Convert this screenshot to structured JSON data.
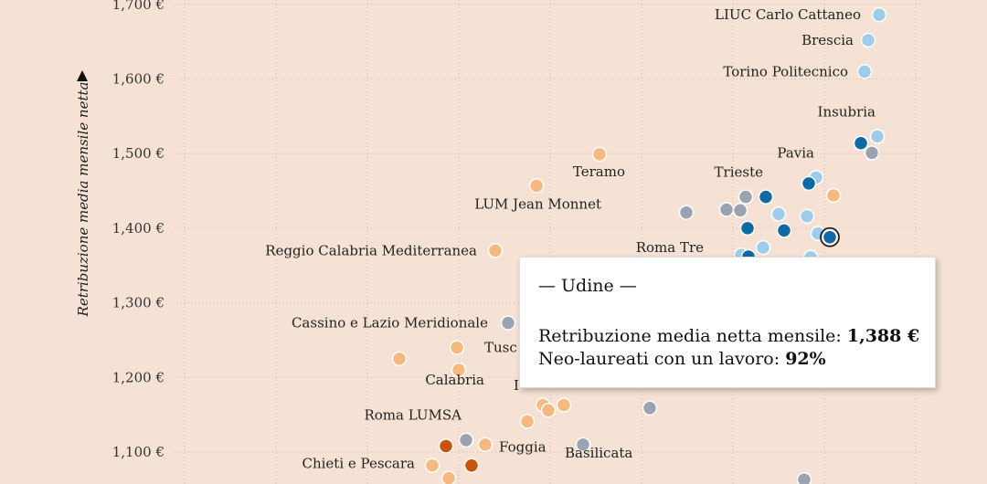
{
  "chart_data": {
    "type": "scatter",
    "ylabel": "Retribuzione media mensile netta",
    "y_ticks": [
      "1,100 €",
      "1,200 €",
      "1,300 €",
      "1,400 €",
      "1,500 €",
      "1,600 €",
      "1,700 €"
    ],
    "grid": true,
    "colors": {
      "background": "#f5e2d4",
      "light_blue": "#9fcde9",
      "blue": "#1f77b4",
      "dark_blue": "#0f6aa3",
      "grey": "#9ba3b0",
      "light_orange": "#f6b97f",
      "dark_orange": "#c8530d"
    },
    "points": [
      {
        "name": "LIUC Carlo Cattaneo",
        "y": 1686,
        "color": "light_blue",
        "label": true
      },
      {
        "name": "Brescia",
        "y": 1652,
        "color": "light_blue",
        "label": true
      },
      {
        "name": "Torino Politecnico",
        "y": 1610,
        "color": "light_blue",
        "label": true
      },
      {
        "name": "Insubria",
        "y": 1523,
        "color": "light_blue",
        "label": true
      },
      {
        "name": "",
        "y": 1514,
        "color": "dark_blue",
        "label": false
      },
      {
        "name": "",
        "y": 1501,
        "color": "grey",
        "label": false
      },
      {
        "name": "Teramo",
        "y": 1499,
        "color": "light_orange",
        "label": true
      },
      {
        "name": "Pavia",
        "y": 1468,
        "color": "light_blue",
        "label": true
      },
      {
        "name": "",
        "y": 1460,
        "color": "dark_blue",
        "label": false
      },
      {
        "name": "LUM Jean Monnet",
        "y": 1457,
        "color": "light_orange",
        "label": true
      },
      {
        "name": "",
        "y": 1444,
        "color": "light_orange",
        "label": false
      },
      {
        "name": "Trieste",
        "y": 1442,
        "color": "grey",
        "label": true
      },
      {
        "name": "",
        "y": 1442,
        "color": "dark_blue",
        "label": false
      },
      {
        "name": "",
        "y": 1425,
        "color": "grey",
        "label": false
      },
      {
        "name": "",
        "y": 1424,
        "color": "grey",
        "label": false
      },
      {
        "name": "",
        "y": 1421,
        "color": "grey",
        "label": false
      },
      {
        "name": "",
        "y": 1419,
        "color": "light_blue",
        "label": false
      },
      {
        "name": "",
        "y": 1416,
        "color": "light_blue",
        "label": false
      },
      {
        "name": "",
        "y": 1400,
        "color": "dark_blue",
        "label": false
      },
      {
        "name": "",
        "y": 1397,
        "color": "dark_blue",
        "label": false
      },
      {
        "name": "",
        "y": 1393,
        "color": "light_blue",
        "label": false
      },
      {
        "name": "Udine",
        "y": 1388,
        "color": "dark_blue",
        "label": false,
        "highlight": true
      },
      {
        "name": "Roma Tre",
        "y": 1374,
        "color": "light_blue",
        "label": true
      },
      {
        "name": "Reggio Calabria Mediterranea",
        "y": 1370,
        "color": "light_orange",
        "label": true
      },
      {
        "name": "",
        "y": 1364,
        "color": "light_blue",
        "label": false
      },
      {
        "name": "",
        "y": 1362,
        "color": "dark_blue",
        "label": false
      },
      {
        "name": "",
        "y": 1361,
        "color": "light_blue",
        "label": false
      },
      {
        "name": "Cassino e Lazio Meridionale",
        "y": 1273,
        "color": "grey",
        "label": true
      },
      {
        "name": "Tuscia",
        "y": 1240,
        "color": "light_orange",
        "label": true,
        "display": "Tusc"
      },
      {
        "name": "",
        "y": 1225,
        "color": "light_orange",
        "label": false
      },
      {
        "name": "Calabria",
        "y": 1210,
        "color": "light_orange",
        "label": true
      },
      {
        "name": "",
        "y": 1163,
        "color": "light_orange",
        "label": false
      },
      {
        "name": "",
        "y": 1163,
        "color": "light_orange",
        "label": false
      },
      {
        "name": "",
        "y": 1159,
        "color": "grey",
        "label": false
      },
      {
        "name": "",
        "y": 1156,
        "color": "light_orange",
        "label": false
      },
      {
        "name": "Roma LUMSA",
        "y": 1141,
        "color": "light_orange",
        "label": true
      },
      {
        "name": "Basilicata",
        "y": 1110,
        "color": "grey",
        "label": true
      },
      {
        "name": "",
        "y": 1116,
        "color": "grey",
        "label": false
      },
      {
        "name": "",
        "y": 1110,
        "color": "light_orange",
        "label": false
      },
      {
        "name": "Foggia",
        "y": 1108,
        "color": "dark_orange",
        "label": true
      },
      {
        "name": "Chieti e Pescara",
        "y": 1082,
        "color": "light_orange",
        "label": true
      },
      {
        "name": "",
        "y": 1082,
        "color": "dark_orange",
        "label": false
      },
      {
        "name": "",
        "y": 1065,
        "color": "light_orange",
        "label": false
      },
      {
        "name": "",
        "y": 1063,
        "color": "grey",
        "label": false
      }
    ]
  },
  "tooltip": {
    "title": "— Udine —",
    "salary_label": "Retribuzione media netta mensile: ",
    "salary_value": "1,388 €",
    "employed_label": "Neo-laureati con un lavoro: ",
    "employed_value": "92%"
  },
  "partial_label": "I"
}
